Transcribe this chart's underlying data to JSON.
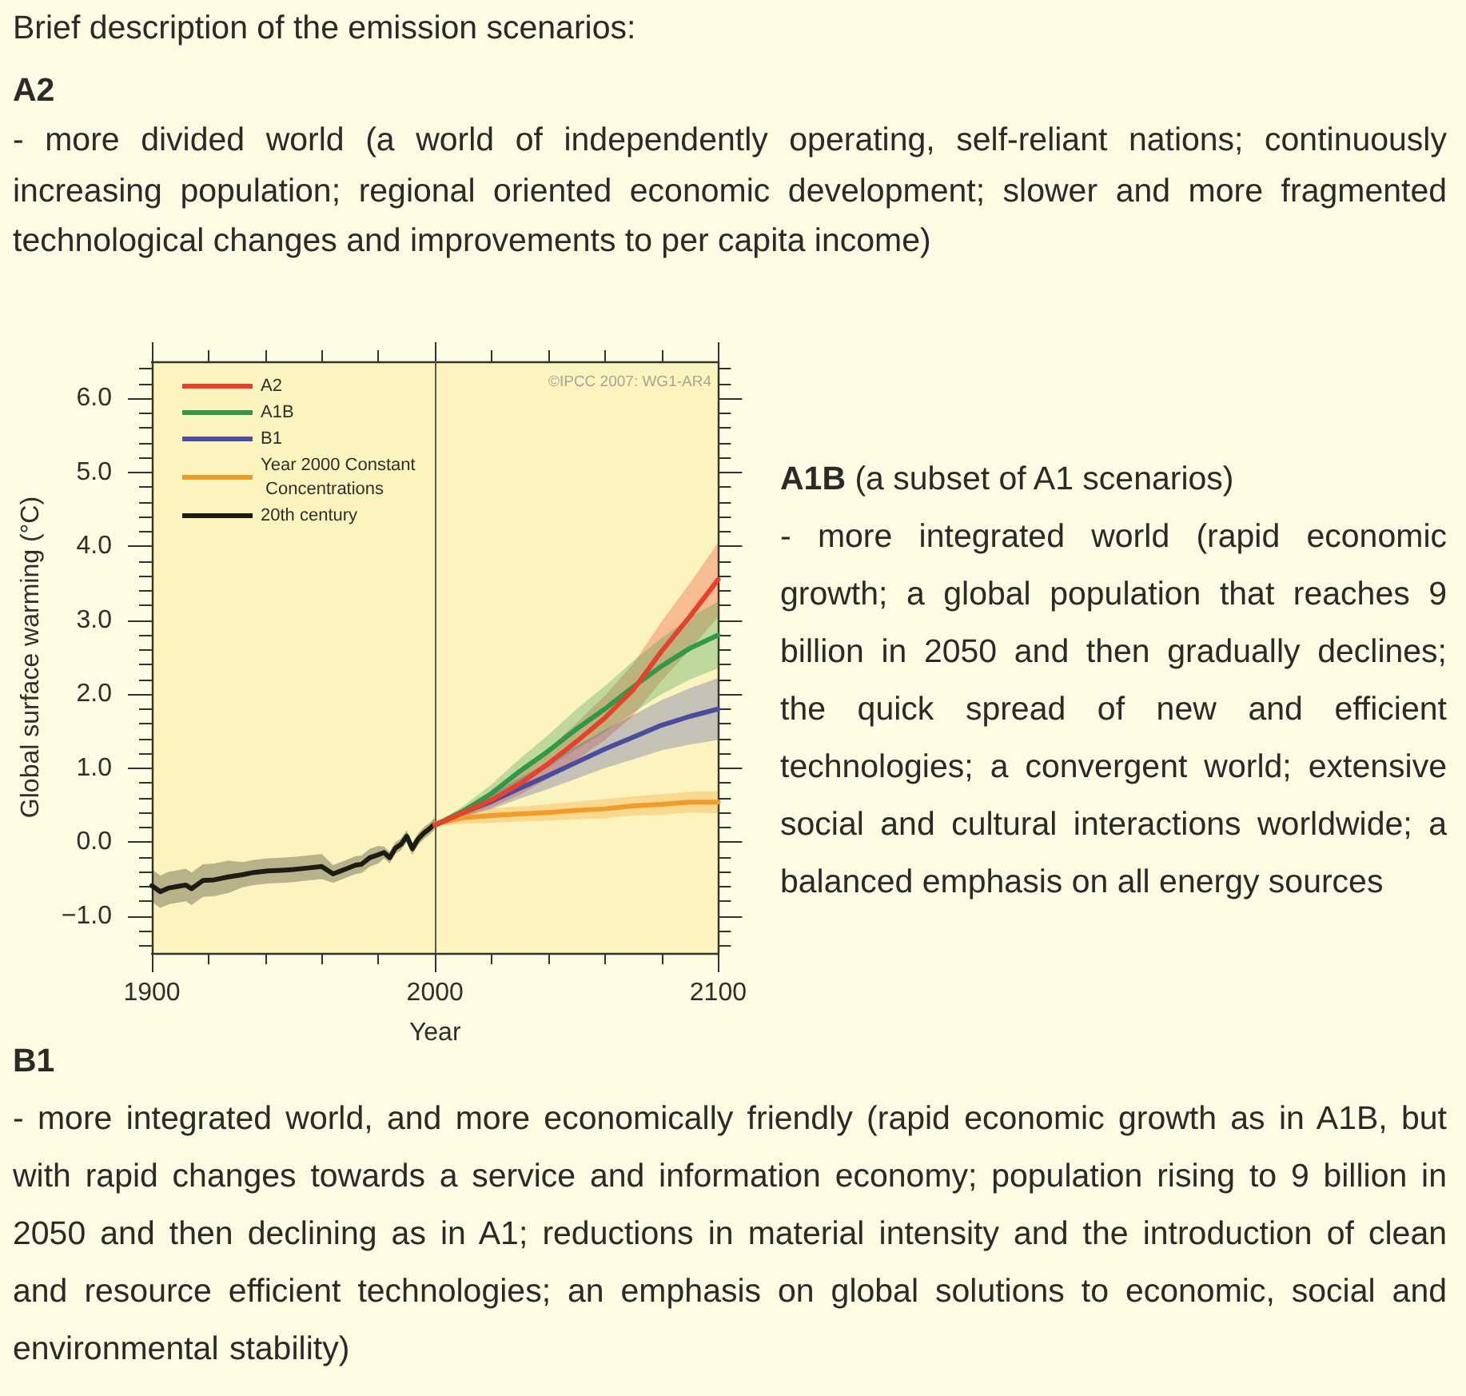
{
  "chart_data": {
    "type": "line",
    "title": "Brief description of the emission scenarios:",
    "xlabel": "Year",
    "ylabel": "Global surface warming (°C)",
    "annotations": [
      "A2",
      "- more divided world (a world of independently operating, self-reliant nations; continuously increasing population; regional oriented economic development; slower and more fragmented technological changes and improvements to per capita income)",
      "A1B",
      "(a subset of A1 scenarios)",
      "- more integrated world (rapid economic growth; a global population that reaches 9 billion in 2050 and then gradually declines; the quick spread of new and efficient technologies; a convergent world; extensive social and cultural interactions worldwide; a balanced emphasis on all energy sources",
      "B1",
      "- more integrated world, and more economically friendly (rapid economic growth as in A1B, but with rapid changes towards a service and information economy; population rising to 9 billion in 2050 and then declining as in A1; reductions in material intensity and the introduction of clean and resource efficient technologies; an emphasis on global solutions to economic, social and environmental stability)",
      "©IPCC 2007: WG1-AR4"
    ],
    "series": [
      {
        "name": "A2",
        "color": "#e8402a",
        "x": [
          2000,
          2010,
          2020,
          2030,
          2040,
          2050,
          2060,
          2070,
          2080,
          2090,
          2100
        ],
        "values": [
          0.23,
          0.4,
          0.57,
          0.79,
          1.06,
          1.36,
          1.68,
          2.06,
          2.58,
          3.05,
          3.55
        ],
        "lower": [
          0.21,
          0.34,
          0.47,
          0.64,
          0.86,
          1.11,
          1.38,
          1.71,
          2.18,
          2.6,
          3.05
        ],
        "upper": [
          0.25,
          0.46,
          0.67,
          0.94,
          1.26,
          1.61,
          1.98,
          2.41,
          2.98,
          3.5,
          4.05
        ]
      },
      {
        "name": "A1B",
        "color": "#2e9a48",
        "x": [
          2000,
          2010,
          2020,
          2030,
          2040,
          2050,
          2060,
          2070,
          2080,
          2090,
          2100
        ],
        "values": [
          0.23,
          0.42,
          0.66,
          0.96,
          1.23,
          1.53,
          1.8,
          2.1,
          2.38,
          2.62,
          2.8
        ],
        "lower": [
          0.21,
          0.35,
          0.54,
          0.79,
          1.01,
          1.26,
          1.49,
          1.75,
          2.0,
          2.2,
          2.35
        ],
        "upper": [
          0.25,
          0.49,
          0.78,
          1.13,
          1.45,
          1.8,
          2.11,
          2.45,
          2.76,
          3.04,
          3.25
        ]
      },
      {
        "name": "B1",
        "color": "#4a4ca0",
        "x": [
          2000,
          2010,
          2020,
          2030,
          2040,
          2050,
          2060,
          2070,
          2080,
          2090,
          2100
        ],
        "values": [
          0.23,
          0.4,
          0.55,
          0.73,
          0.9,
          1.08,
          1.26,
          1.42,
          1.58,
          1.7,
          1.8
        ],
        "lower": [
          0.21,
          0.34,
          0.45,
          0.59,
          0.72,
          0.86,
          1.0,
          1.12,
          1.24,
          1.32,
          1.38
        ],
        "upper": [
          0.25,
          0.46,
          0.65,
          0.87,
          1.08,
          1.3,
          1.52,
          1.72,
          1.92,
          2.08,
          2.22
        ]
      },
      {
        "name": "Year 2000 Constant Concentrations",
        "color": "#f29b26",
        "x": [
          2000,
          2010,
          2020,
          2030,
          2040,
          2050,
          2060,
          2070,
          2080,
          2090,
          2100
        ],
        "values": [
          0.25,
          0.33,
          0.36,
          0.38,
          0.4,
          0.43,
          0.45,
          0.49,
          0.51,
          0.54,
          0.54
        ],
        "lower": [
          0.22,
          0.25,
          0.26,
          0.28,
          0.29,
          0.31,
          0.32,
          0.36,
          0.37,
          0.4,
          0.39
        ],
        "upper": [
          0.28,
          0.41,
          0.46,
          0.48,
          0.51,
          0.55,
          0.58,
          0.62,
          0.65,
          0.68,
          0.69
        ]
      },
      {
        "name": "20th century",
        "color": "#1c1c14",
        "x": [
          1900,
          1903,
          1906,
          1909,
          1912,
          1914,
          1918,
          1922,
          1927,
          1932,
          1936,
          1941,
          1946,
          1950,
          1955,
          1960,
          1964,
          1968,
          1972,
          1974,
          1977,
          1980,
          1982,
          1984,
          1986,
          1988,
          1990,
          1992,
          1994,
          1996,
          1998,
          2000
        ],
        "values": [
          -0.59,
          -0.67,
          -0.62,
          -0.6,
          -0.58,
          -0.63,
          -0.52,
          -0.51,
          -0.47,
          -0.44,
          -0.41,
          -0.39,
          -0.38,
          -0.37,
          -0.35,
          -0.33,
          -0.43,
          -0.37,
          -0.31,
          -0.3,
          -0.21,
          -0.17,
          -0.14,
          -0.21,
          -0.08,
          -0.03,
          0.08,
          -0.09,
          0.04,
          0.12,
          0.18,
          0.25
        ],
        "lower": [
          -0.81,
          -0.89,
          -0.84,
          -0.82,
          -0.8,
          -0.85,
          -0.74,
          -0.73,
          -0.69,
          -0.61,
          -0.58,
          -0.56,
          -0.55,
          -0.54,
          -0.52,
          -0.5,
          -0.55,
          -0.49,
          -0.43,
          -0.42,
          -0.33,
          -0.29,
          -0.22,
          -0.29,
          -0.16,
          -0.11,
          0.0,
          -0.17,
          -0.04,
          0.04,
          0.1,
          0.17
        ],
        "upper": [
          -0.37,
          -0.45,
          -0.4,
          -0.38,
          -0.36,
          -0.41,
          -0.3,
          -0.29,
          -0.25,
          -0.27,
          -0.24,
          -0.22,
          -0.21,
          -0.2,
          -0.18,
          -0.16,
          -0.31,
          -0.25,
          -0.19,
          -0.18,
          -0.09,
          -0.05,
          -0.06,
          -0.13,
          0.0,
          0.05,
          0.16,
          -0.01,
          0.12,
          0.2,
          0.26,
          0.33
        ]
      }
    ],
    "xlim": [
      1900,
      2100
    ],
    "xticks": [
      1900,
      {
        "value": 1920,
        "label": null
      },
      {
        "value": 1940,
        "label": null
      },
      {
        "value": 1960,
        "label": null
      },
      {
        "value": 1980,
        "label": null
      },
      2000,
      {
        "value": 2020,
        "label": null
      },
      {
        "value": 2040,
        "label": null
      },
      {
        "value": 2060,
        "label": null
      },
      {
        "value": 2080,
        "label": null
      },
      2100
    ],
    "ylim": [
      -1.5,
      6.5
    ],
    "yticks": [
      {
        "value": -1.4,
        "label": null
      },
      {
        "value": -1.2,
        "label": null
      },
      {
        "value": -1,
        "label": "−1.0"
      },
      {
        "value": -0.8,
        "label": null
      },
      {
        "value": -0.6,
        "label": null
      },
      {
        "value": -0.4,
        "label": null
      },
      {
        "value": -0.2,
        "label": null
      },
      {
        "value": 0,
        "label": "0.0"
      },
      {
        "value": 0.2,
        "label": null
      },
      {
        "value": 0.4,
        "label": null
      },
      {
        "value": 0.6,
        "label": null
      },
      {
        "value": 0.8,
        "label": null
      },
      {
        "value": 1,
        "label": "1.0"
      },
      {
        "value": 1.2,
        "label": null
      },
      {
        "value": 1.4,
        "label": null
      },
      {
        "value": 1.6,
        "label": null
      },
      {
        "value": 1.8,
        "label": null
      },
      {
        "value": 2,
        "label": "2.0"
      },
      {
        "value": 2.2,
        "label": null
      },
      {
        "value": 2.4,
        "label": null
      },
      {
        "value": 2.6,
        "label": null
      },
      {
        "value": 2.8,
        "label": null
      },
      {
        "value": 3,
        "label": "3.0"
      },
      {
        "value": 3.2,
        "label": null
      },
      {
        "value": 3.4,
        "label": null
      },
      {
        "value": 3.6,
        "label": null
      },
      {
        "value": 3.8,
        "label": null
      },
      {
        "value": 4,
        "label": "4.0"
      },
      {
        "value": 4.2,
        "label": null
      },
      {
        "value": 4.4,
        "label": null
      },
      {
        "value": 4.6,
        "label": null
      },
      {
        "value": 4.8,
        "label": null
      },
      {
        "value": 5,
        "label": "5.0"
      },
      {
        "value": 5.2,
        "label": null
      },
      {
        "value": 5.4,
        "label": null
      },
      {
        "value": 5.6,
        "label": null
      },
      {
        "value": 5.8,
        "label": null
      },
      {
        "value": 6,
        "label": "6.0"
      },
      {
        "value": 6.2,
        "label": null
      },
      {
        "value": 6.4,
        "label": null
      }
    ],
    "ref_lines": [
      {
        "axis": "x",
        "value": 2000,
        "color": "#5a5a48"
      }
    ],
    "legend": "top left"
  }
}
